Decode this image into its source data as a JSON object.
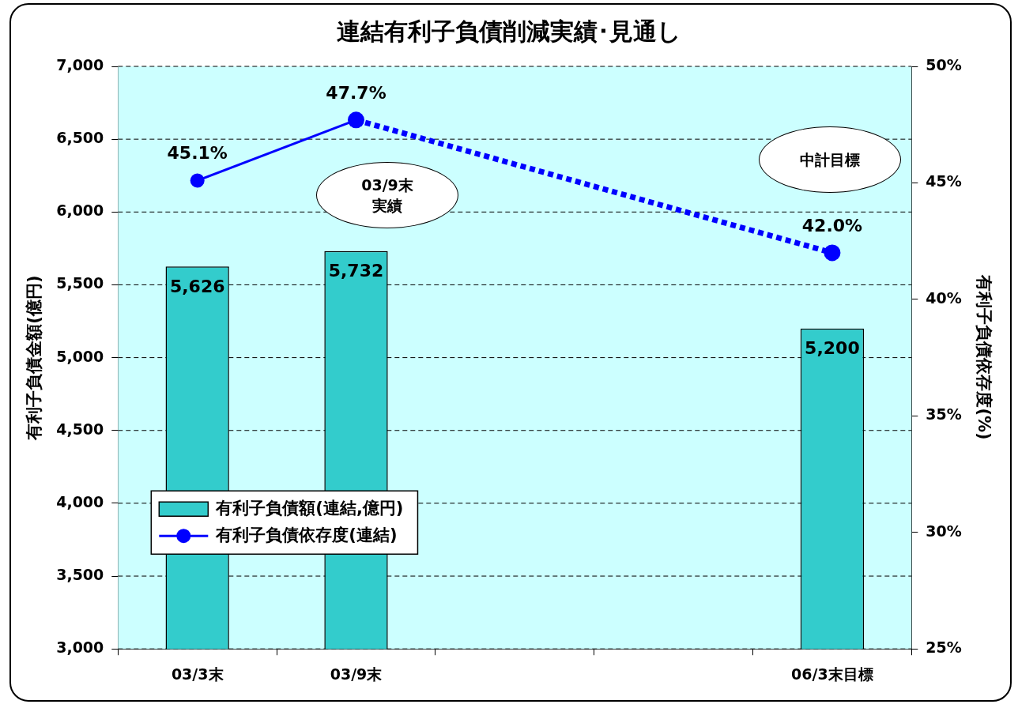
{
  "chart_data": {
    "type": "bar",
    "title": "連結有利子負債削減実績･見通し",
    "ylabel": "有利子負債金額(億円)",
    "y2label": "有利子負債依存度(%)",
    "categories": [
      "03/3末",
      "03/9末",
      null,
      null,
      "06/3末目標"
    ],
    "series": [
      {
        "name": "有利子負債額(連結,億円)",
        "color": "#33cccc",
        "values": [
          5626,
          5732,
          null,
          null,
          5200
        ],
        "value_labels": [
          "5,626",
          "5,732",
          null,
          null,
          "5,200"
        ]
      },
      {
        "name": "有利子負債依存度(連結)",
        "type": "line",
        "axis": "y2",
        "color": "#0000ff",
        "marker": "circle",
        "line_style": "solid",
        "values": [
          45.1,
          47.7,
          null,
          null,
          null
        ],
        "value_labels": [
          "45.1%",
          "47.7%",
          null,
          null,
          null
        ]
      },
      {
        "type": "line",
        "axis": "y2",
        "color": "#0000ff",
        "marker": "circle",
        "line_style": "dotted",
        "values": [
          null,
          47.7,
          null,
          null,
          42.0
        ],
        "value_labels": [
          null,
          null,
          null,
          null,
          "42.0%"
        ]
      }
    ],
    "ylim": [
      3000,
      7000
    ],
    "yticks": [
      {
        "value": 3000,
        "label": "3,000"
      },
      {
        "value": 3500,
        "label": "3,500"
      },
      {
        "value": 4000,
        "label": "4,000"
      },
      {
        "value": 4500,
        "label": "4,500"
      },
      {
        "value": 5000,
        "label": "5,000"
      },
      {
        "value": 5500,
        "label": "5,500"
      },
      {
        "value": 6000,
        "label": "6,000"
      },
      {
        "value": 6500,
        "label": "6,500"
      },
      {
        "value": 7000,
        "label": "7,000"
      }
    ],
    "y2lim": [
      25,
      50
    ],
    "y2ticks": [
      {
        "value": 25,
        "label": "25%"
      },
      {
        "value": 30,
        "label": "30%"
      },
      {
        "value": 35,
        "label": "35%"
      },
      {
        "value": 40,
        "label": "40%"
      },
      {
        "value": 45,
        "label": "45%"
      },
      {
        "value": 50,
        "label": "50%"
      }
    ],
    "annotations": [
      "03/9末実績",
      "中計目標"
    ],
    "grid": "y",
    "legend": "bottom left"
  }
}
